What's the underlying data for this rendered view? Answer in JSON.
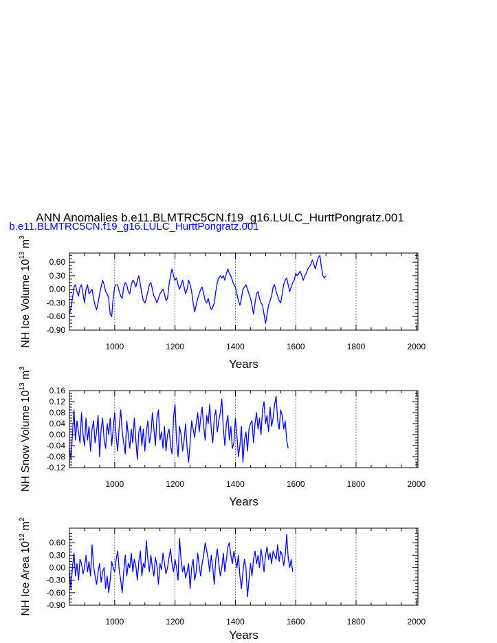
{
  "figure": {
    "title": "ANN Anomalies b.e11.BLMTRC5CN.f19_g16.LULC_HurttPongratz.001",
    "subtitle": "b.e11.BLMTRC5CN.f19_g16.LULC_HurttPongratz.001",
    "subtitle_color": "#0000ff",
    "series_color": "#0000ff"
  },
  "chart_data": [
    {
      "type": "line",
      "title": "",
      "xlabel": "Years",
      "ylabel": {
        "base": "NH Ice Volume 10",
        "exp": "13",
        "unit": " m",
        "unit_exp": "3"
      },
      "xlim": [
        850,
        2005
      ],
      "ylim": [
        -0.9,
        0.8
      ],
      "x_ticks": [
        1000,
        1200,
        1400,
        1600,
        1800,
        2000
      ],
      "x_tick_labels": [
        "1000",
        "1200",
        "1400",
        "1600",
        "1800",
        "2000"
      ],
      "y_ticks": [
        -0.9,
        -0.6,
        -0.3,
        0.0,
        0.3,
        0.6
      ],
      "y_tick_labels": [
        "-0.90",
        "-0.60",
        "-0.30",
        "0.00",
        "0.30",
        "0.60"
      ],
      "grid_x": [
        1000,
        1200,
        1400,
        1600,
        1800
      ],
      "series": [
        {
          "name": "b.e11.BLMTRC5CN.f19_g16.LULC_HurttPongratz.001",
          "x_start": 850,
          "x_step": 5,
          "values": [
            -0.55,
            -0.4,
            -0.2,
            0.05,
            0.1,
            -0.05,
            -0.15,
            0.05,
            0.1,
            -0.1,
            -0.3,
            0.0,
            0.1,
            -0.1,
            -0.05,
            0.0,
            -0.2,
            -0.35,
            -0.45,
            -0.3,
            -0.1,
            0.05,
            0.2,
            0.1,
            -0.05,
            -0.1,
            -0.2,
            -0.55,
            -0.6,
            -0.2,
            0.05,
            0.1,
            0.1,
            -0.05,
            -0.15,
            -0.2,
            0.05,
            0.15,
            0.1,
            -0.05,
            -0.1,
            0.1,
            0.2,
            0.15,
            0.05,
            0.2,
            0.3,
            0.1,
            -0.1,
            -0.25,
            -0.3,
            -0.2,
            -0.05,
            0.1,
            0.15,
            0.0,
            -0.15,
            -0.2,
            -0.3,
            -0.2,
            -0.1,
            -0.05,
            0.0,
            -0.1,
            -0.25,
            -0.2,
            0.1,
            0.3,
            0.45,
            0.3,
            0.2,
            0.25,
            0.1,
            0.0,
            0.1,
            0.2,
            0.05,
            -0.1,
            0.0,
            0.2,
            0.1,
            -0.05,
            -0.3,
            -0.5,
            -0.35,
            -0.2,
            -0.1,
            0.0,
            0.05,
            -0.1,
            -0.25,
            -0.3,
            -0.2,
            -0.35,
            -0.45,
            -0.4,
            -0.3,
            -0.05,
            0.15,
            0.25,
            0.3,
            0.25,
            0.3,
            0.2,
            0.35,
            0.45,
            0.35,
            0.3,
            0.2,
            0.1,
            0.05,
            -0.1,
            -0.25,
            -0.35,
            -0.2,
            0.0,
            0.05,
            0.1,
            0.0,
            -0.1,
            -0.2,
            -0.35,
            -0.55,
            -0.3,
            -0.1,
            -0.05,
            -0.2,
            -0.3,
            -0.35,
            -0.55,
            -0.75,
            -0.55,
            -0.35,
            -0.25,
            -0.15,
            0.05,
            0.1,
            -0.05,
            -0.15,
            -0.25,
            -0.3,
            -0.1,
            0.1,
            0.2,
            0.25,
            0.1,
            -0.05,
            0.05,
            0.15,
            0.2,
            0.35,
            0.3,
            0.35,
            0.4,
            0.3,
            0.2,
            0.3,
            0.35,
            0.45,
            0.5,
            0.55,
            0.65,
            0.55,
            0.45,
            0.6,
            0.7,
            0.75,
            0.5,
            0.3,
            0.25,
            0.3
          ]
        }
      ]
    },
    {
      "type": "line",
      "title": "",
      "xlabel": "Years",
      "ylabel": {
        "base": "NH Snow Volume 10",
        "exp": "13",
        "unit": " m",
        "unit_exp": "3"
      },
      "xlim": [
        850,
        2005
      ],
      "ylim": [
        -0.12,
        0.16
      ],
      "x_ticks": [
        1000,
        1200,
        1400,
        1600,
        1800,
        2000
      ],
      "x_tick_labels": [
        "1000",
        "1200",
        "1400",
        "1600",
        "1800",
        "2000"
      ],
      "y_ticks": [
        -0.12,
        -0.08,
        -0.04,
        0.0,
        0.04,
        0.08,
        0.12,
        0.16
      ],
      "y_tick_labels": [
        "-0.12",
        "-0.08",
        "-0.04",
        "0.00",
        "0.04",
        "0.08",
        "0.12",
        "0.16"
      ],
      "grid_x": [
        1000,
        1200,
        1400,
        1600,
        1800
      ],
      "series": [
        {
          "name": "b.e11.BLMTRC5CN.f19_g16.LULC_HurttPongratz.001",
          "x_start": 850,
          "x_step": 5,
          "values": [
            -0.05,
            -0.09,
            0.0,
            0.09,
            -0.02,
            0.05,
            0.01,
            -0.03,
            0.08,
            0.0,
            -0.04,
            0.06,
            -0.02,
            0.03,
            -0.06,
            0.02,
            0.05,
            -0.03,
            0.01,
            0.07,
            -0.08,
            0.02,
            0.06,
            -0.02,
            -0.05,
            0.04,
            0.0,
            0.06,
            -0.04,
            0.02,
            0.08,
            -0.01,
            -0.06,
            0.03,
            0.09,
            0.01,
            -0.03,
            -0.07,
            0.05,
            0.0,
            -0.05,
            0.02,
            -0.03,
            0.06,
            -0.02,
            -0.09,
            0.01,
            0.03,
            -0.04,
            0.02,
            -0.06,
            0.01,
            0.05,
            -0.03,
            0.0,
            0.08,
            0.02,
            -0.04,
            0.06,
            0.09,
            -0.02,
            0.01,
            -0.05,
            0.03,
            -0.06,
            0.0,
            0.02,
            -0.04,
            -0.07,
            0.06,
            0.11,
            -0.02,
            -0.08,
            0.03,
            0.0,
            -0.06,
            -0.02,
            0.04,
            -0.05,
            -0.1,
            -0.03,
            0.05,
            0.02,
            -0.01,
            0.04,
            0.08,
            0.01,
            0.06,
            0.1,
            0.03,
            -0.02,
            0.07,
            0.04,
            0.11,
            0.02,
            -0.03,
            0.06,
            0.09,
            0.01,
            0.05,
            0.08,
            0.13,
            0.02,
            -0.04,
            0.04,
            0.07,
            -0.02,
            0.03,
            -0.05,
            -0.03,
            0.06,
            0.0,
            -0.08,
            -0.04,
            0.03,
            -0.1,
            -0.02,
            0.01,
            -0.06,
            0.02,
            0.04,
            0.05,
            -0.03,
            0.04,
            0.08,
            0.02,
            0.06,
            0.0,
            0.09,
            0.12,
            0.04,
            0.07,
            0.01,
            0.1,
            0.03,
            0.06,
            0.11,
            0.14,
            0.05,
            0.02,
            0.09,
            0.07,
            0.02,
            0.05,
            -0.02,
            -0.05
          ]
        }
      ]
    },
    {
      "type": "line",
      "title": "",
      "xlabel": "Years",
      "ylabel": {
        "base": "NH Ice Area 10",
        "exp": "12",
        "unit": " m",
        "unit_exp": "2"
      },
      "xlim": [
        850,
        2005
      ],
      "ylim": [
        -0.9,
        0.95
      ],
      "x_ticks": [
        1000,
        1200,
        1400,
        1600,
        1800,
        2000
      ],
      "x_tick_labels": [
        "1000",
        "1200",
        "1400",
        "1600",
        "1800",
        "2000"
      ],
      "y_ticks": [
        -0.9,
        -0.6,
        -0.3,
        0.0,
        0.3,
        0.6
      ],
      "y_tick_labels": [
        "-0.90",
        "-0.60",
        "-0.30",
        "0.00",
        "0.30",
        "0.60"
      ],
      "grid_x": [
        1000,
        1200,
        1400,
        1600,
        1800
      ],
      "series": [
        {
          "name": "b.e11.BLMTRC5CN.f19_g16.LULC_HurttPongratz.001",
          "x_start": 850,
          "x_step": 5,
          "values": [
            -0.1,
            -0.5,
            0.0,
            0.35,
            -0.2,
            0.1,
            -0.3,
            0.2,
            0.1,
            -0.15,
            0.0,
            0.3,
            -0.1,
            0.15,
            -0.2,
            0.55,
            0.05,
            -0.2,
            -0.4,
            -0.1,
            0.1,
            -0.35,
            -0.1,
            0.0,
            -0.5,
            -0.2,
            -0.6,
            -0.3,
            0.15,
            0.0,
            -0.1,
            0.2,
            0.4,
            -0.05,
            -0.3,
            -0.6,
            -0.1,
            0.3,
            -0.2,
            0.1,
            0.0,
            0.35,
            -0.1,
            0.2,
            0.05,
            -0.3,
            0.15,
            0.4,
            -0.2,
            0.1,
            0.0,
            0.65,
            0.2,
            -0.1,
            0.3,
            0.0,
            -0.2,
            0.25,
            0.05,
            -0.4,
            0.1,
            -0.05,
            0.35,
            0.1,
            -0.15,
            0.0,
            0.25,
            0.45,
            0.1,
            -0.1,
            0.2,
            0.0,
            -0.3,
            0.7,
            0.2,
            -0.1,
            0.05,
            -0.25,
            -0.1,
            0.1,
            -0.5,
            0.0,
            0.2,
            -0.3,
            -0.1,
            0.35,
            0.05,
            -0.2,
            0.1,
            0.3,
            0.6,
            0.4,
            0.2,
            -0.1,
            0.3,
            0.0,
            -0.4,
            0.2,
            0.45,
            0.1,
            -0.2,
            0.0,
            0.35,
            -0.1,
            0.2,
            0.5,
            0.6,
            0.3,
            0.1,
            0.4,
            0.2,
            0.0,
            0.3,
            -0.2,
            -0.5,
            -0.1,
            0.2,
            0.0,
            -0.7,
            -0.3,
            0.1,
            -0.2,
            0.2,
            0.4,
            0.1,
            0.3,
            0.0,
            0.45,
            0.2,
            -0.1,
            0.3,
            0.5,
            0.2,
            0.35,
            0.1,
            0.4,
            0.3,
            0.2,
            0.55,
            0.15,
            0.4,
            0.3,
            0.05,
            0.3,
            0.8,
            0.25,
            0.0,
            0.2,
            -0.1
          ]
        }
      ]
    }
  ]
}
